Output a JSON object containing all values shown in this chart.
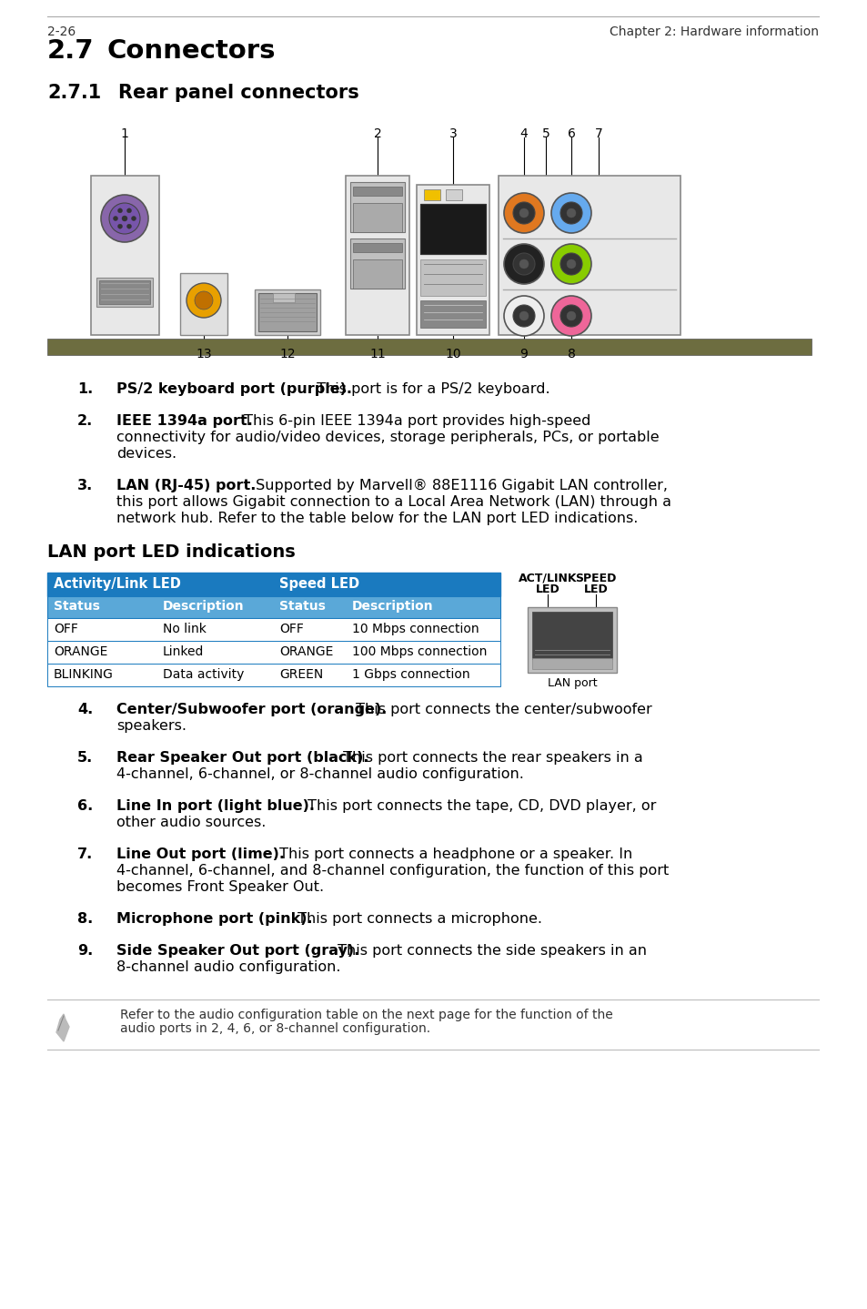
{
  "bg_color": "#ffffff",
  "table_header_color": "#1a7abf",
  "table_subheader_color": "#5aa8d8",
  "table_border_color": "#1a7abf",
  "table_data": {
    "col1_header": "Activity/Link LED",
    "col2_header": "Speed LED",
    "subheaders": [
      "Status",
      "Description",
      "Status",
      "Description"
    ],
    "rows": [
      [
        "OFF",
        "No link",
        "OFF",
        "10 Mbps connection"
      ],
      [
        "ORANGE",
        "Linked",
        "ORANGE",
        "100 Mbps connection"
      ],
      [
        "BLINKING",
        "Data activity",
        "GREEN",
        "1 Gbps connection"
      ]
    ]
  },
  "footer_left": "2-26",
  "footer_right": "Chapter 2: Hardware information",
  "note_line1": "Refer to the audio configuration table on the next page for the function of the",
  "note_line2": "audio ports in 2, 4, 6, or 8-channel configuration."
}
